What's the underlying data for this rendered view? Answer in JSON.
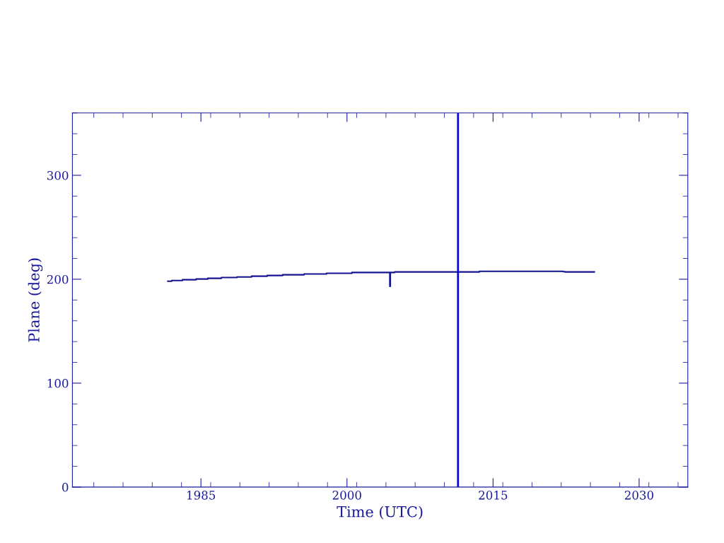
{
  "chart_data": {
    "type": "step",
    "xlabel": "Time (UTC)",
    "ylabel": "Plane (deg)",
    "x": [
      1981.6,
      1982.0,
      1983.1,
      1984.5,
      1985.7,
      1987.1,
      1988.7,
      1990.2,
      1991.8,
      1993.4,
      1995.6,
      1997.9,
      2000.5,
      2004.4,
      2004.45,
      2004.9,
      2013.6,
      2022.2,
      2022.4,
      2025.4
    ],
    "series": [
      {
        "color": "#141490",
        "values": [
          198.1,
          198.8,
          199.5,
          200.2,
          200.9,
          201.6,
          202.2,
          202.9,
          203.6,
          204.3,
          205.0,
          205.7,
          206.5,
          193.1,
          206.5,
          207.0,
          207.6,
          207.3,
          207.0,
          207.0
        ]
      }
    ],
    "xlim": [
      1971.8,
      2035.0
    ],
    "xticks": [
      1985,
      2000,
      2015,
      2030
    ],
    "ylim": [
      0,
      360
    ],
    "yticks": [
      0,
      100,
      200,
      300
    ],
    "ref_lines": [
      {
        "axis": "x",
        "value": 2011.4,
        "label": null,
        "color": "#0a0ad2"
      }
    ],
    "grid": false,
    "legend": false
  }
}
